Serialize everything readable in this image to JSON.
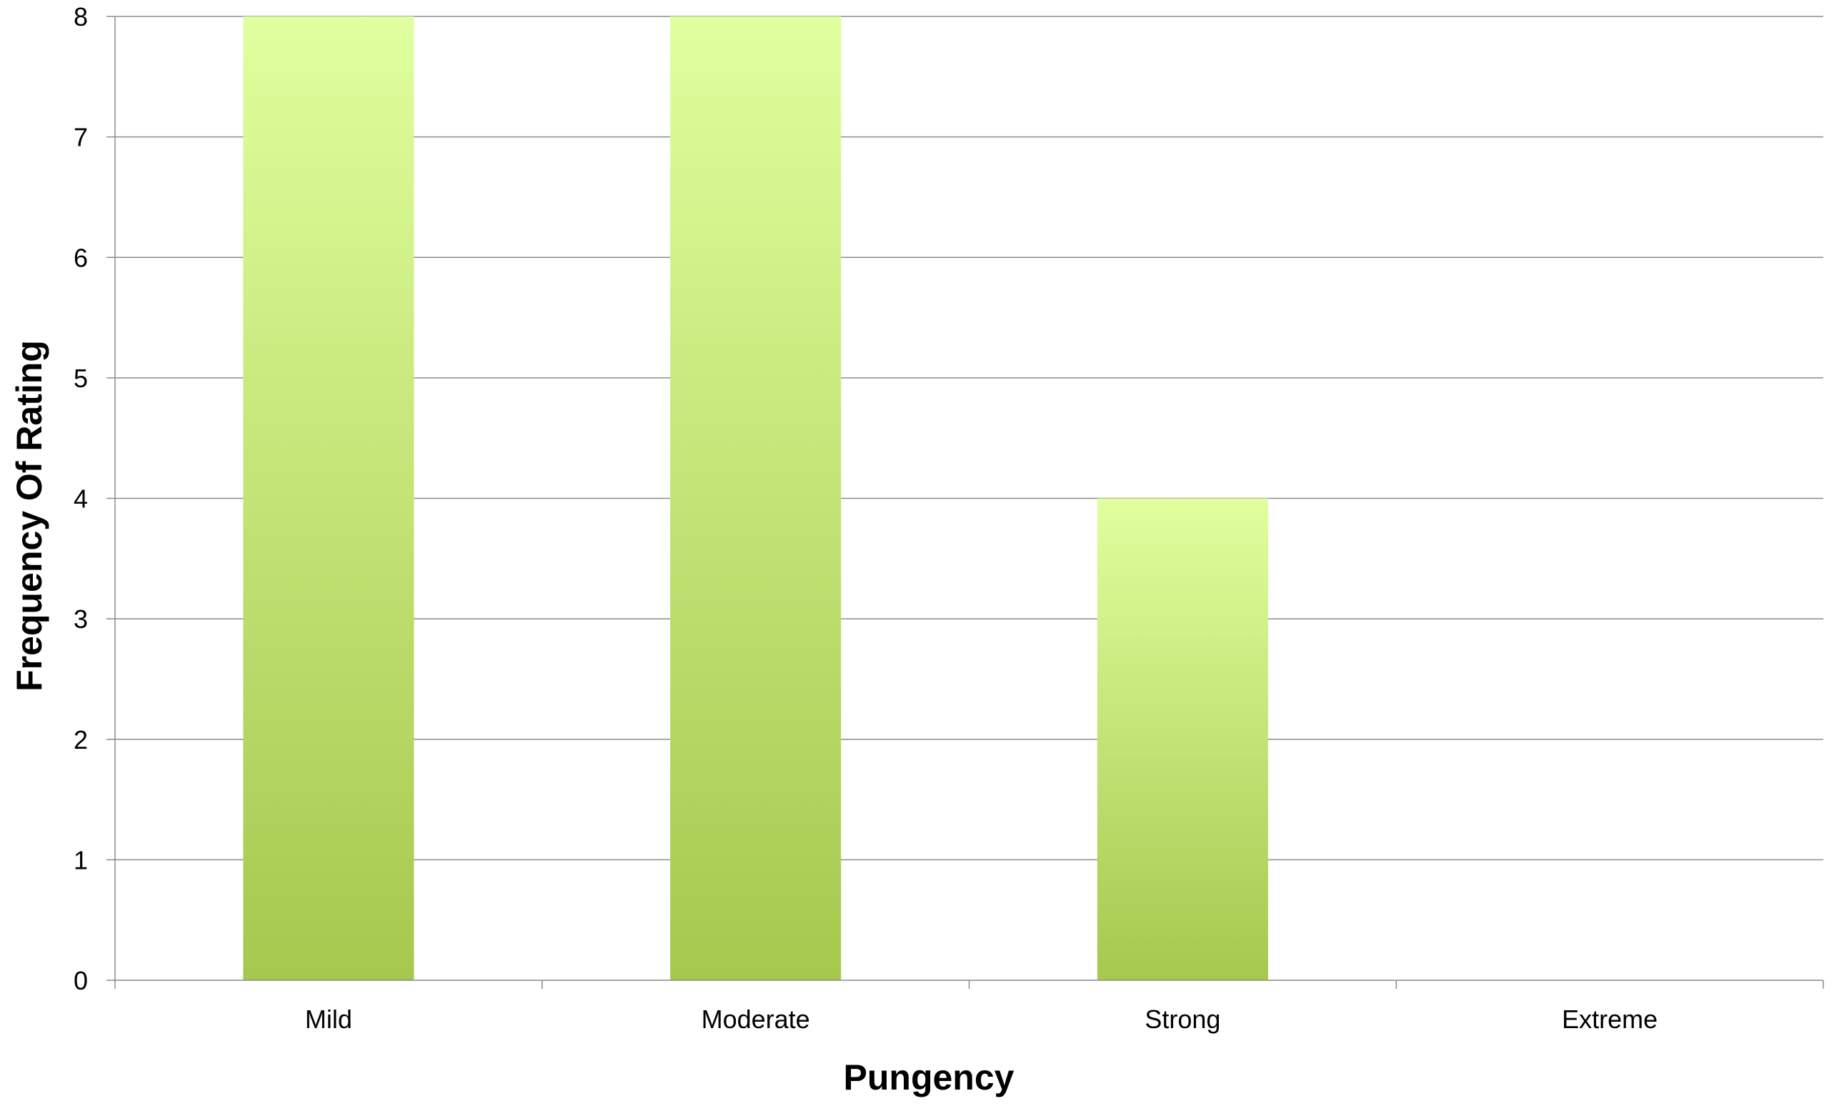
{
  "chart_data": {
    "type": "bar",
    "title": "",
    "xlabel": "Pungency",
    "ylabel": "Frequency Of Rating",
    "categories": [
      "Mild",
      "Moderate",
      "Strong",
      "Extreme"
    ],
    "values": [
      8,
      8,
      4,
      0
    ],
    "ylim": [
      0,
      8
    ],
    "yticks": [
      "0",
      "1",
      "2",
      "3",
      "4",
      "5",
      "6",
      "7",
      "8"
    ],
    "grid": true,
    "legend": "none",
    "colors": {
      "bar_top": "#e0ff9e",
      "bar_bottom": "#a6c84e",
      "grid": "#8c8c8c",
      "axis": "#8c8c8c"
    }
  }
}
